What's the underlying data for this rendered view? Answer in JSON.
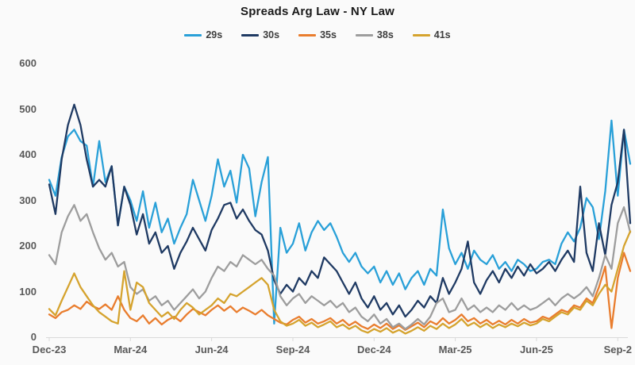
{
  "colors": {
    "background": "#FAFAFA",
    "axis_line": "#D9D9D9",
    "axis_text": "#595959",
    "title_text": "#1A1A1A",
    "legend_text": "#3D3D3D"
  },
  "chart_data": {
    "type": "line",
    "title": "Spreads Arg Law - NY Law",
    "xlabel": "",
    "ylabel": "",
    "grid": false,
    "legend_position": "top",
    "x_axis": {
      "tick_labels": [
        "Dec-23",
        "Mar-24",
        "Jun-24",
        "Sep-24",
        "Dec-24",
        "Mar-25",
        "Jun-25",
        "Sep-2"
      ],
      "tick_indices": [
        0,
        13,
        26,
        39,
        52,
        65,
        78,
        91
      ],
      "sampling": "weekly points, Dec-2023 through Sep-2025"
    },
    "y_axis": {
      "tick_labels": [
        "0",
        "100",
        "200",
        "300",
        "400",
        "500",
        "600"
      ],
      "min": 0,
      "max": 600
    },
    "series": [
      {
        "name": "29s",
        "color": "#29A0D8",
        "values": [
          345,
          310,
          395,
          440,
          455,
          430,
          420,
          330,
          430,
          340,
          375,
          245,
          330,
          300,
          255,
          320,
          240,
          295,
          230,
          260,
          205,
          240,
          270,
          345,
          300,
          255,
          310,
          390,
          330,
          365,
          295,
          400,
          370,
          265,
          340,
          395,
          30,
          240,
          185,
          205,
          250,
          190,
          230,
          255,
          235,
          250,
          220,
          185,
          165,
          185,
          155,
          140,
          155,
          120,
          145,
          115,
          140,
          105,
          130,
          145,
          115,
          150,
          135,
          280,
          195,
          160,
          185,
          150,
          190,
          170,
          160,
          180,
          150,
          165,
          145,
          170,
          160,
          145,
          150,
          165,
          170,
          160,
          205,
          230,
          210,
          240,
          305,
          285,
          215,
          320,
          475,
          310,
          455,
          380
        ]
      },
      {
        "name": "30s",
        "color": "#1F3A63",
        "values": [
          335,
          270,
          390,
          465,
          510,
          465,
          390,
          330,
          345,
          330,
          375,
          245,
          330,
          290,
          225,
          270,
          205,
          230,
          185,
          200,
          150,
          185,
          210,
          240,
          215,
          190,
          235,
          260,
          290,
          295,
          260,
          280,
          255,
          235,
          225,
          190,
          125,
          95,
          115,
          100,
          130,
          115,
          145,
          130,
          175,
          160,
          145,
          120,
          95,
          120,
          85,
          65,
          90,
          60,
          75,
          50,
          70,
          45,
          60,
          80,
          65,
          90,
          75,
          130,
          95,
          120,
          150,
          210,
          120,
          95,
          125,
          145,
          120,
          150,
          130,
          155,
          135,
          160,
          140,
          150,
          165,
          145,
          170,
          190,
          165,
          330,
          185,
          145,
          250,
          180,
          290,
          340,
          455,
          250
        ]
      },
      {
        "name": "35s",
        "color": "#E97D2E",
        "values": [
          50,
          42,
          55,
          60,
          70,
          62,
          78,
          68,
          62,
          72,
          60,
          90,
          60,
          42,
          35,
          48,
          30,
          42,
          28,
          38,
          45,
          35,
          50,
          62,
          55,
          48,
          60,
          70,
          58,
          68,
          55,
          65,
          58,
          50,
          60,
          48,
          40,
          32,
          28,
          38,
          45,
          32,
          40,
          30,
          35,
          42,
          30,
          38,
          26,
          34,
          24,
          18,
          28,
          20,
          30,
          18,
          26,
          16,
          24,
          32,
          22,
          35,
          28,
          42,
          30,
          38,
          50,
          35,
          42,
          30,
          38,
          28,
          36,
          28,
          38,
          30,
          40,
          32,
          35,
          45,
          40,
          50,
          60,
          55,
          70,
          65,
          85,
          75,
          110,
          155,
          20,
          130,
          185,
          145
        ]
      },
      {
        "name": "38s",
        "color": "#9D9D9D",
        "values": [
          180,
          160,
          230,
          265,
          290,
          255,
          270,
          230,
          195,
          170,
          185,
          155,
          165,
          110,
          95,
          105,
          80,
          90,
          70,
          80,
          60,
          75,
          90,
          105,
          85,
          100,
          130,
          155,
          145,
          165,
          155,
          180,
          170,
          160,
          170,
          150,
          135,
          90,
          70,
          85,
          95,
          75,
          90,
          80,
          70,
          80,
          65,
          75,
          55,
          65,
          45,
          35,
          50,
          30,
          40,
          22,
          30,
          18,
          28,
          40,
          28,
          45,
          75,
          85,
          55,
          60,
          85,
          60,
          70,
          55,
          65,
          55,
          70,
          60,
          75,
          60,
          70,
          60,
          65,
          75,
          85,
          70,
          85,
          95,
          85,
          95,
          110,
          90,
          130,
          180,
          150,
          250,
          285,
          230
        ]
      },
      {
        "name": "41s",
        "color": "#D5A32E",
        "values": [
          62,
          48,
          80,
          110,
          140,
          110,
          90,
          70,
          55,
          45,
          35,
          30,
          145,
          60,
          120,
          110,
          75,
          60,
          45,
          55,
          40,
          60,
          75,
          65,
          50,
          60,
          70,
          85,
          75,
          95,
          90,
          100,
          110,
          120,
          130,
          115,
          60,
          35,
          25,
          30,
          38,
          25,
          32,
          22,
          28,
          35,
          22,
          28,
          18,
          25,
          15,
          10,
          18,
          12,
          20,
          10,
          16,
          8,
          14,
          22,
          14,
          25,
          18,
          30,
          20,
          28,
          40,
          25,
          32,
          22,
          30,
          20,
          28,
          22,
          30,
          24,
          32,
          26,
          30,
          40,
          35,
          45,
          55,
          50,
          65,
          60,
          80,
          70,
          95,
          115,
          100,
          150,
          200,
          232
        ]
      }
    ]
  }
}
